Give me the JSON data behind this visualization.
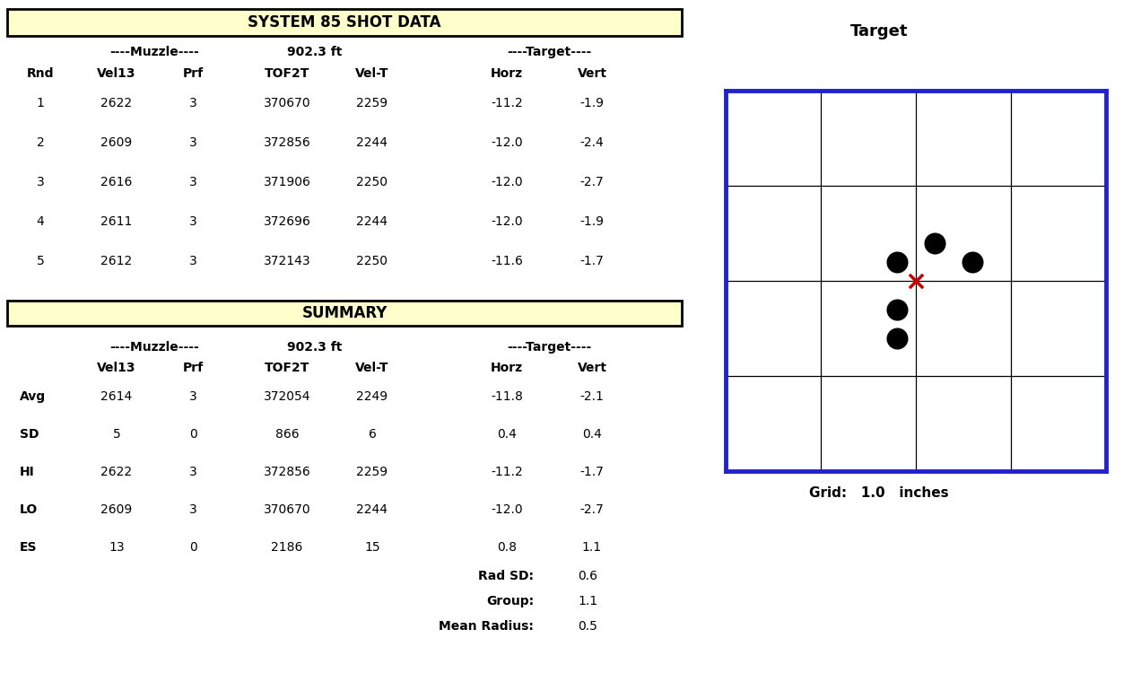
{
  "title": "SYSTEM 85 SHOT DATA",
  "summary_title": "SUMMARY",
  "distance": "902.3 ft",
  "muzzle_label": "----Muzzle----",
  "target_label": "----Target----",
  "shots": [
    [
      1,
      2622,
      3,
      370670,
      2259,
      -11.2,
      -1.9
    ],
    [
      2,
      2609,
      3,
      372856,
      2244,
      -12.0,
      -2.4
    ],
    [
      3,
      2616,
      3,
      371906,
      2250,
      -12.0,
      -2.7
    ],
    [
      4,
      2611,
      3,
      372696,
      2244,
      -12.0,
      -1.9
    ],
    [
      5,
      2612,
      3,
      372143,
      2250,
      -11.6,
      -1.7
    ]
  ],
  "summary_row_labels": [
    "Avg",
    "SD",
    "HI",
    "LO",
    "ES"
  ],
  "summary_rows": [
    [
      2614,
      3,
      372054,
      2249,
      -11.8,
      -2.1
    ],
    [
      5,
      0,
      866,
      6,
      0.4,
      0.4
    ],
    [
      2622,
      3,
      372856,
      2259,
      -11.2,
      -1.7
    ],
    [
      2609,
      3,
      370670,
      2244,
      -12.0,
      -2.7
    ],
    [
      13,
      0,
      2186,
      15,
      0.8,
      1.1
    ]
  ],
  "rad_sd": "0.6",
  "group": "1.1",
  "mean_radius": "0.5",
  "shot_horz": [
    -11.2,
    -12.0,
    -12.0,
    -12.0,
    -11.6
  ],
  "shot_vert": [
    -1.9,
    -2.4,
    -2.7,
    -1.9,
    -1.7
  ],
  "mean_horz": -11.8,
  "mean_vert": -2.1,
  "grid_size": 1.0,
  "header_bg": "#ffffcc",
  "table_bg": "#ffffff",
  "border_color": "#000000",
  "target_border_color": "#2222cc",
  "dot_color": "#000000",
  "cross_color": "#cc0000",
  "grid_color": "#000000",
  "font_size_title": 12,
  "font_size_sub": 10,
  "font_size_data": 10,
  "font_size_target_title": 12
}
